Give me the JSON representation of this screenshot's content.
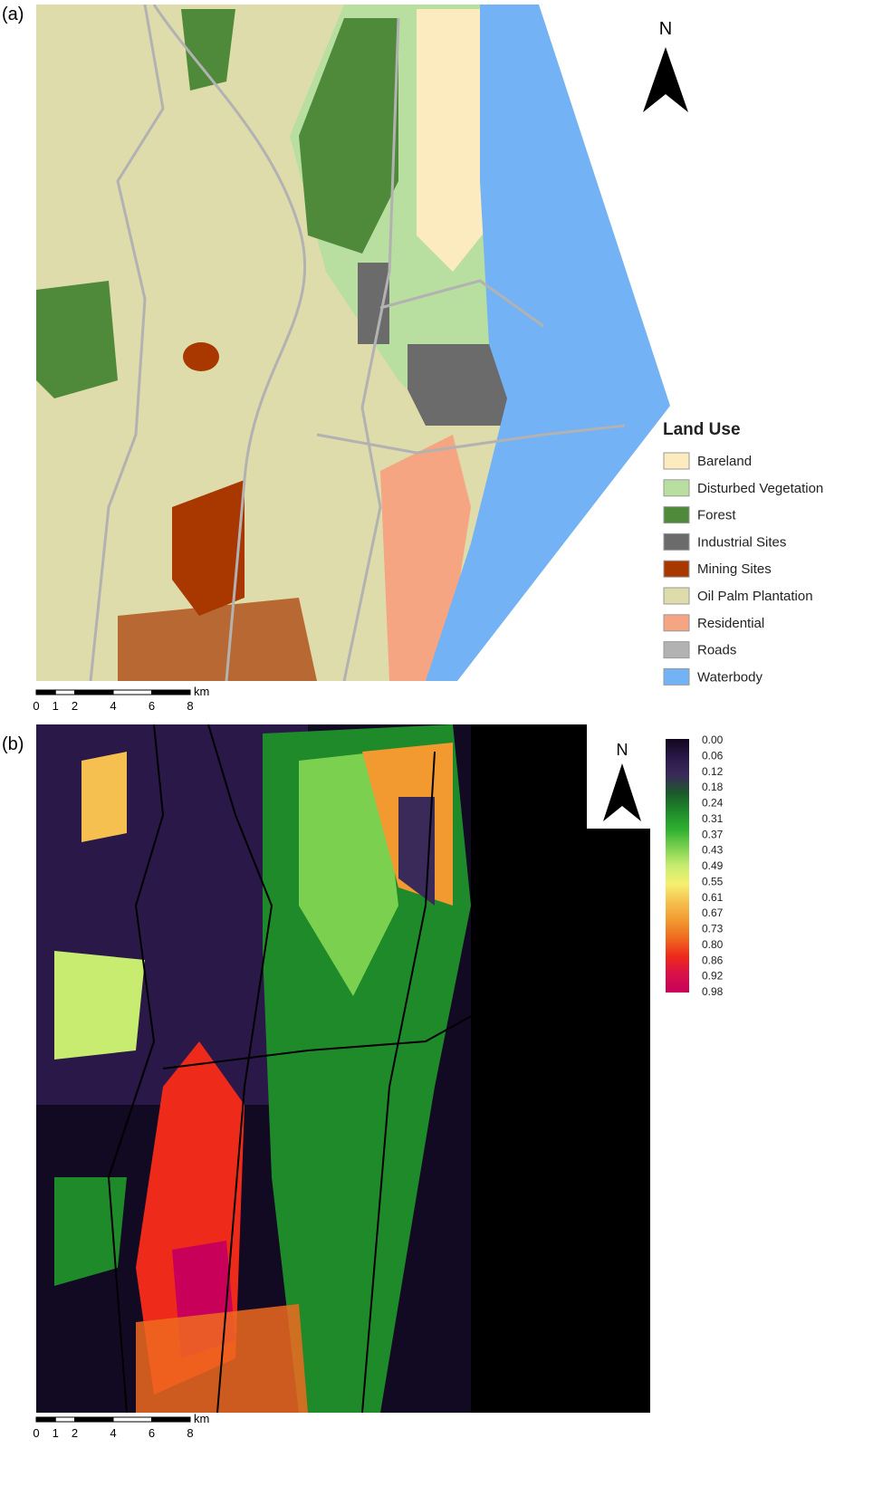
{
  "panels": [
    {
      "label": "(a)",
      "north": "N",
      "legend": {
        "title": "Land Use",
        "items": [
          {
            "name": "Bareland",
            "color": "#fdebc0"
          },
          {
            "name": "Disturbed Vegetation",
            "color": "#b8dea0"
          },
          {
            "name": "Forest",
            "color": "#4e8a3a"
          },
          {
            "name": "Industrial Sites",
            "color": "#6b6b6b"
          },
          {
            "name": "Mining Sites",
            "color": "#a83800"
          },
          {
            "name": "Oil Palm Plantation",
            "color": "#dedcaa"
          },
          {
            "name": "Residential",
            "color": "#f5a582"
          },
          {
            "name": "Roads",
            "color": "#b2b2b2"
          },
          {
            "name": "Waterbody",
            "color": "#73b2f5"
          }
        ]
      },
      "scale": {
        "ticks": [
          0,
          1,
          2,
          4,
          6,
          8
        ],
        "unit": "km"
      }
    },
    {
      "label": "(b)",
      "north": "N",
      "colorbar": {
        "labels": [
          "0.00",
          "0.06",
          "0.12",
          "0.18",
          "0.24",
          "0.31",
          "0.37",
          "0.43",
          "0.49",
          "0.55",
          "0.61",
          "0.67",
          "0.73",
          "0.80",
          "0.86",
          "0.92",
          "0.98"
        ],
        "colors": [
          "#12061e",
          "#2a1848",
          "#3a2a5a",
          "#1c5a2a",
          "#1f8a2a",
          "#2fb030",
          "#7cd050",
          "#c8ec70",
          "#f5f070",
          "#f5c050",
          "#f29a30",
          "#ef6a20",
          "#ee2a1a",
          "#d8104a",
          "#c8005a"
        ]
      },
      "scale": {
        "ticks": [
          0,
          1,
          2,
          4,
          6,
          8
        ],
        "unit": "km"
      }
    }
  ]
}
